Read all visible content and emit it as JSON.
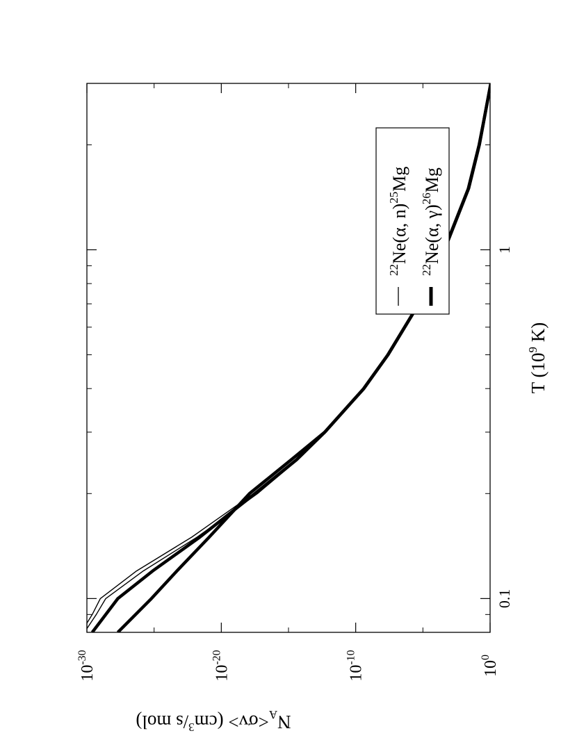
{
  "chart_data": {
    "type": "line",
    "orientation": "rotated-90-clockwise",
    "xlabel_parts": {
      "pre": "T (10",
      "sup": "9",
      "post": " K)"
    },
    "ylabel_parts": {
      "pre": "N",
      "sub": "A",
      "mid": "<σv> (cm",
      "sup": "3",
      "post": "/s mol)"
    },
    "x_scale": "log",
    "xlim": [
      0.08,
      3.0
    ],
    "x_ticks": [
      {
        "value": 0.1,
        "label": "0.1"
      },
      {
        "value": 1,
        "label": "1"
      }
    ],
    "x_minor_ticks": [
      0.09,
      0.2,
      0.3,
      0.4,
      0.5,
      0.6,
      0.7,
      0.8,
      0.9,
      2,
      3
    ],
    "y_scale": "log",
    "ylim_exp": [
      -30,
      0
    ],
    "y_ticks": [
      {
        "exp": 0,
        "base": "10",
        "sup": "0"
      },
      {
        "exp": -10,
        "base": "10",
        "sup": "-10"
      },
      {
        "exp": -20,
        "base": "10",
        "sup": "-20"
      },
      {
        "exp": -30,
        "base": "10",
        "sup": "-30"
      }
    ],
    "legend_position": "top-left",
    "legend": [
      {
        "pre": "22",
        "mid": "Ne(α, n)",
        "sup": "25",
        "post": "Mg",
        "style": "thin"
      },
      {
        "pre": "22",
        "mid": "Ne(α, γ)",
        "sup": "26",
        "post": "Mg",
        "style": "thick"
      }
    ],
    "series": [
      {
        "style": "thin",
        "x": [
          0.082,
          0.09,
          0.1,
          0.12,
          0.15,
          0.2,
          0.25,
          0.3,
          0.4,
          0.5,
          0.7,
          1.0,
          1.5,
          2.0,
          3.0
        ],
        "log10_y": [
          -30.0,
          -29.3,
          -28.6,
          -25.8,
          -21.8,
          -17.3,
          -14.3,
          -12.2,
          -9.4,
          -7.6,
          -5.3,
          -3.4,
          -1.6,
          -0.8,
          0.1
        ]
      },
      {
        "style": "thin",
        "x": [
          0.085,
          0.09,
          0.1,
          0.12,
          0.15,
          0.2,
          0.25,
          0.3,
          0.4,
          0.5,
          0.7,
          1.0,
          1.5,
          2.0,
          3.0
        ],
        "log10_y": [
          -30.0,
          -29.6,
          -29.0,
          -26.3,
          -22.2,
          -17.6,
          -14.5,
          -12.3,
          -9.5,
          -7.7,
          -5.4,
          -3.5,
          -1.7,
          -0.9,
          0.0
        ]
      },
      {
        "style": "thick",
        "x": [
          0.08,
          0.1,
          0.12,
          0.15,
          0.2,
          0.25,
          0.3,
          0.4,
          0.5,
          0.7,
          1.0,
          1.5,
          2.0,
          3.0
        ],
        "log10_y": [
          -29.6,
          -27.7,
          -25.1,
          -21.6,
          -17.5,
          -14.4,
          -12.3,
          -9.4,
          -7.6,
          -5.3,
          -3.4,
          -1.6,
          -0.8,
          0.05
        ]
      },
      {
        "style": "thick",
        "x": [
          0.08,
          0.1,
          0.12,
          0.15,
          0.2,
          0.25,
          0.3,
          0.4,
          0.5,
          0.7,
          1.0,
          1.5,
          2.0,
          3.0
        ],
        "log10_y": [
          -27.7,
          -25.2,
          -23.3,
          -20.9,
          -17.9,
          -14.8,
          -12.3,
          -9.4,
          -7.6,
          -5.3,
          -3.4,
          -1.6,
          -0.8,
          0.05
        ]
      }
    ]
  }
}
